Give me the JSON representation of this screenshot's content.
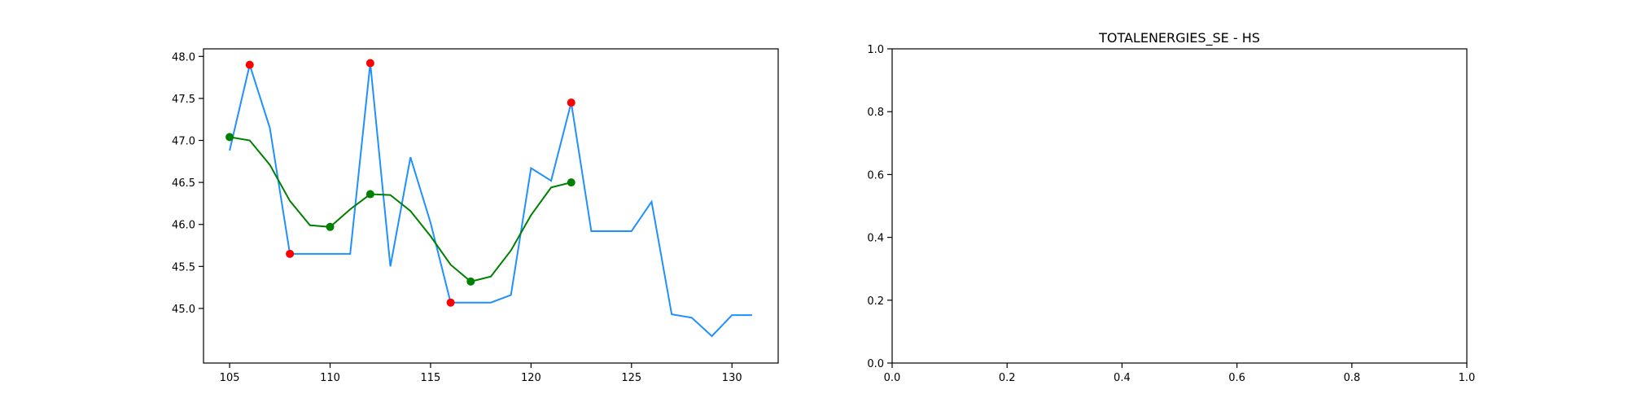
{
  "chart_data": [
    {
      "type": "line",
      "title": "",
      "xlabel": "",
      "ylabel": "",
      "xlim": [
        103.7,
        132.3
      ],
      "ylim": [
        44.35,
        48.09
      ],
      "xticks": [
        105,
        110,
        115,
        120,
        125,
        130
      ],
      "yticks": [
        45.0,
        45.5,
        46.0,
        46.5,
        47.0,
        47.5,
        48.0
      ],
      "grid": false,
      "legend": "none",
      "series": [
        {
          "kind": "line",
          "color": "#1e90ff",
          "x": [
            105,
            106,
            107,
            108,
            109,
            110,
            111,
            112,
            113,
            114,
            115,
            116,
            117,
            118,
            119,
            120,
            121,
            122,
            123,
            124,
            125,
            126,
            127,
            128,
            129,
            130,
            131
          ],
          "y": [
            46.88,
            47.9,
            47.15,
            45.65,
            45.65,
            45.65,
            45.65,
            47.92,
            45.5,
            46.8,
            46.02,
            45.07,
            45.07,
            45.07,
            45.16,
            46.67,
            46.52,
            47.45,
            45.92,
            45.92,
            45.92,
            46.27,
            44.93,
            44.89,
            44.67,
            44.92,
            44.92
          ]
        },
        {
          "kind": "line",
          "color": "#008000",
          "x": [
            105,
            106,
            107,
            108,
            109,
            110,
            111,
            112,
            113,
            114,
            115,
            116,
            117,
            118,
            119,
            120,
            121,
            122
          ],
          "y": [
            47.04,
            47.0,
            46.71,
            46.28,
            45.99,
            45.97,
            46.18,
            46.36,
            46.35,
            46.16,
            45.86,
            45.52,
            45.32,
            45.38,
            45.69,
            46.11,
            46.44,
            46.5
          ]
        },
        {
          "kind": "scatter",
          "color": "#ff0000",
          "x": [
            106,
            108,
            112,
            116,
            122
          ],
          "y": [
            47.9,
            45.65,
            47.92,
            45.07,
            47.45
          ]
        },
        {
          "kind": "scatter",
          "color": "#008000",
          "x": [
            105,
            110,
            112,
            117,
            122
          ],
          "y": [
            47.04,
            45.97,
            46.36,
            45.32,
            46.5
          ]
        }
      ]
    },
    {
      "type": "line",
      "title": "TOTALENERGIES_SE - HS",
      "xlabel": "",
      "ylabel": "",
      "xlim": [
        0,
        1
      ],
      "ylim": [
        0,
        1
      ],
      "xticks": [
        0.0,
        0.2,
        0.4,
        0.6,
        0.8,
        1.0
      ],
      "yticks": [
        0.0,
        0.2,
        0.4,
        0.6,
        0.8,
        1.0
      ],
      "grid": false,
      "legend": "none",
      "series": []
    }
  ]
}
